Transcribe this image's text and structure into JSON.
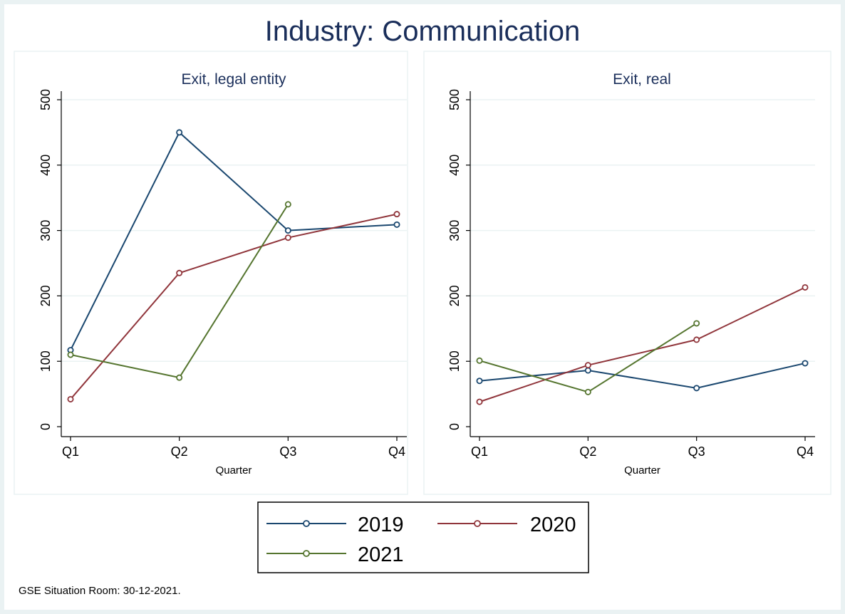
{
  "title": "Industry: Communication",
  "source_note": "GSE Situation Room: 30-12-2021.",
  "colors": {
    "outer_background": "#eaf2f3",
    "panel_background": "#ffffff",
    "title": "#1a2e5a",
    "gridline": "#eaf2f3",
    "axis": "#000000",
    "series_2019": "#1a476f",
    "series_2020": "#90353b",
    "series_2021": "#55752f"
  },
  "legend": {
    "position": "bottom",
    "entries": [
      "2019",
      "2020",
      "2021"
    ]
  },
  "chart_data": [
    {
      "type": "line",
      "title": "Exit, legal entity",
      "xlabel": "Quarter",
      "ylabel": "",
      "categories": [
        "Q1",
        "Q2",
        "Q3",
        "Q4"
      ],
      "ylim": [
        0,
        500
      ],
      "yticks": [
        0,
        100,
        200,
        300,
        400,
        500
      ],
      "grid": true,
      "series": [
        {
          "name": "2019",
          "values": [
            117,
            450,
            300,
            309
          ]
        },
        {
          "name": "2020",
          "values": [
            42,
            235,
            289,
            325
          ]
        },
        {
          "name": "2021",
          "values": [
            110,
            75,
            340,
            null
          ]
        }
      ]
    },
    {
      "type": "line",
      "title": "Exit, real",
      "xlabel": "Quarter",
      "ylabel": "",
      "categories": [
        "Q1",
        "Q2",
        "Q3",
        "Q4"
      ],
      "ylim": [
        0,
        500
      ],
      "yticks": [
        0,
        100,
        200,
        300,
        400,
        500
      ],
      "grid": true,
      "series": [
        {
          "name": "2019",
          "values": [
            70,
            86,
            59,
            97
          ]
        },
        {
          "name": "2020",
          "values": [
            38,
            94,
            133,
            213
          ]
        },
        {
          "name": "2021",
          "values": [
            101,
            53,
            158,
            null
          ]
        }
      ]
    }
  ]
}
